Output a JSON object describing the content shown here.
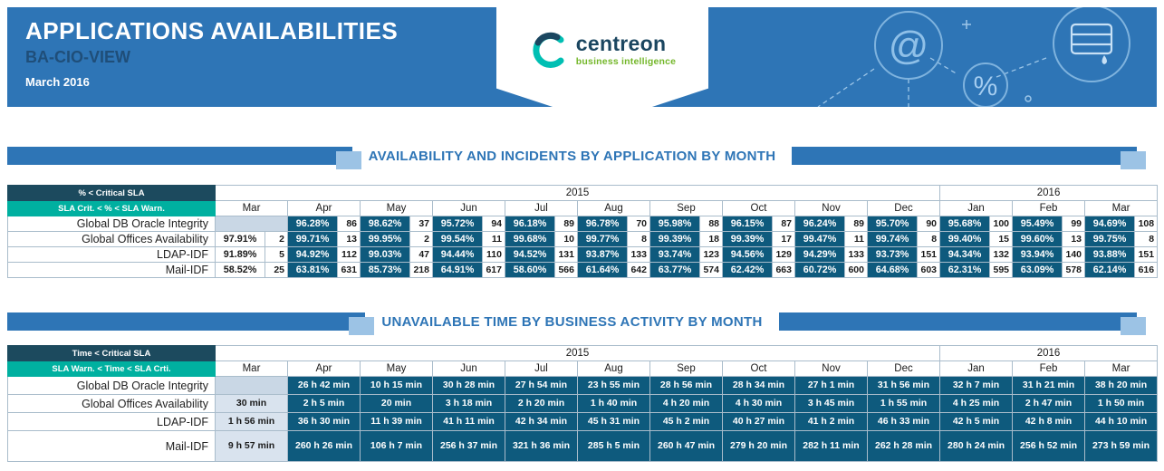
{
  "header": {
    "title": "APPLICATIONS AVAILABILITIES",
    "subtitle": "BA-CIO-VIEW",
    "date": "March 2016",
    "logo_brand": "centreon",
    "logo_tagline": "business intelligence"
  },
  "colors": {
    "banner_blue": "#2e75b6",
    "section_blue": "#2e75b6",
    "section_light_blue": "#9cc3e5",
    "cell_dark_blue": "#0e5a7d",
    "legend_dark": "#1c4a5e",
    "legend_teal": "#00b0a0",
    "empty_cell": "#c9d7e5",
    "logo_green": "#74b72a",
    "logo_navy": "#1b4660"
  },
  "availability_table": {
    "section_title": "AVAILABILITY AND INCIDENTS BY APPLICATION BY MONTH",
    "legend_primary": "% < Critical SLA",
    "legend_secondary": "SLA Crit. < % < SLA Warn.",
    "year_groups": [
      {
        "label": "2015",
        "span": 10
      },
      {
        "label": "2016",
        "span": 3
      }
    ],
    "months": [
      "Mar",
      "Apr",
      "May",
      "Jun",
      "Jul",
      "Aug",
      "Sep",
      "Oct",
      "Nov",
      "Dec",
      "Jan",
      "Feb",
      "Mar"
    ],
    "rows": [
      {
        "label": "Global DB Oracle Integrity",
        "cells": [
          null,
          [
            "96.28%",
            "86"
          ],
          [
            "98.62%",
            "37"
          ],
          [
            "95.72%",
            "94"
          ],
          [
            "96.18%",
            "89"
          ],
          [
            "96.78%",
            "70"
          ],
          [
            "95.98%",
            "88"
          ],
          [
            "96.15%",
            "87"
          ],
          [
            "96.24%",
            "89"
          ],
          [
            "95.70%",
            "90"
          ],
          [
            "95.68%",
            "100"
          ],
          [
            "95.49%",
            "99"
          ],
          [
            "94.69%",
            "108"
          ]
        ]
      },
      {
        "label": "Global Offices Availability",
        "cells": [
          [
            "97.91%",
            "2"
          ],
          [
            "99.71%",
            "13"
          ],
          [
            "99.95%",
            "2"
          ],
          [
            "99.54%",
            "11"
          ],
          [
            "99.68%",
            "10"
          ],
          [
            "99.77%",
            "8"
          ],
          [
            "99.39%",
            "18"
          ],
          [
            "99.39%",
            "17"
          ],
          [
            "99.47%",
            "11"
          ],
          [
            "99.74%",
            "8"
          ],
          [
            "99.40%",
            "15"
          ],
          [
            "99.60%",
            "13"
          ],
          [
            "99.75%",
            "8"
          ]
        ]
      },
      {
        "label": "LDAP-IDF",
        "cells": [
          [
            "91.89%",
            "5"
          ],
          [
            "94.92%",
            "112"
          ],
          [
            "99.03%",
            "47"
          ],
          [
            "94.44%",
            "110"
          ],
          [
            "94.52%",
            "131"
          ],
          [
            "93.87%",
            "133"
          ],
          [
            "93.74%",
            "123"
          ],
          [
            "94.56%",
            "129"
          ],
          [
            "94.29%",
            "133"
          ],
          [
            "93.73%",
            "151"
          ],
          [
            "94.34%",
            "132"
          ],
          [
            "93.94%",
            "140"
          ],
          [
            "93.88%",
            "151"
          ]
        ]
      },
      {
        "label": "Mail-IDF",
        "cells": [
          [
            "58.52%",
            "25"
          ],
          [
            "63.81%",
            "631"
          ],
          [
            "85.73%",
            "218"
          ],
          [
            "64.91%",
            "617"
          ],
          [
            "58.60%",
            "566"
          ],
          [
            "61.64%",
            "642"
          ],
          [
            "63.77%",
            "574"
          ],
          [
            "62.42%",
            "663"
          ],
          [
            "60.72%",
            "600"
          ],
          [
            "64.68%",
            "603"
          ],
          [
            "62.31%",
            "595"
          ],
          [
            "63.09%",
            "578"
          ],
          [
            "62.14%",
            "616"
          ]
        ]
      }
    ]
  },
  "unavailable_table": {
    "section_title": "UNAVAILABLE TIME BY BUSINESS ACTIVITY BY MONTH",
    "legend_primary": "Time < Critical SLA",
    "legend_secondary": "SLA Warn. < Time < SLA Crti.",
    "year_groups": [
      {
        "label": "2015",
        "span": 10
      },
      {
        "label": "2016",
        "span": 3
      }
    ],
    "months": [
      "Mar",
      "Apr",
      "May",
      "Jun",
      "Jul",
      "Aug",
      "Sep",
      "Oct",
      "Nov",
      "Dec",
      "Jan",
      "Feb",
      "Mar"
    ],
    "rows": [
      {
        "label": "Global DB Oracle Integrity",
        "cells": [
          null,
          "26 h 42 min",
          "10 h 15 min",
          "30 h 28 min",
          "27 h 54 min",
          "23 h 55 min",
          "28 h 56 min",
          "28 h 34 min",
          "27 h 1 min",
          "31 h 56 min",
          "32 h 7 min",
          "31 h 21 min",
          "38 h 20 min"
        ]
      },
      {
        "label": "Global Offices Availability",
        "cells": [
          "30 min",
          "2 h 5 min",
          "20 min",
          "3 h 18 min",
          "2 h 20 min",
          "1 h 40 min",
          "4 h 20 min",
          "4 h 30 min",
          "3 h 45 min",
          "1 h 55 min",
          "4 h 25 min",
          "2 h 47 min",
          "1 h 50 min"
        ]
      },
      {
        "label": "LDAP-IDF",
        "cells": [
          "1 h 56 min",
          "36 h 30 min",
          "11 h 39 min",
          "41 h 11 min",
          "42 h 34 min",
          "45 h 31 min",
          "45 h 2 min",
          "40 h 27 min",
          "41 h 2 min",
          "46 h 33 min",
          "42 h 5 min",
          "42 h 8 min",
          "44 h 10 min"
        ]
      },
      {
        "label": "Mail-IDF",
        "tall": true,
        "cells": [
          "9 h 57 min",
          "260 h 26 min",
          "106 h 7 min",
          "256 h 37 min",
          "321 h 36 min",
          "285 h 5 min",
          "260 h 47 min",
          "279 h 20 min",
          "282 h 11 min",
          "262 h 28 min",
          "280 h 24 min",
          "256 h 52 min",
          "273 h 59 min"
        ]
      }
    ]
  }
}
